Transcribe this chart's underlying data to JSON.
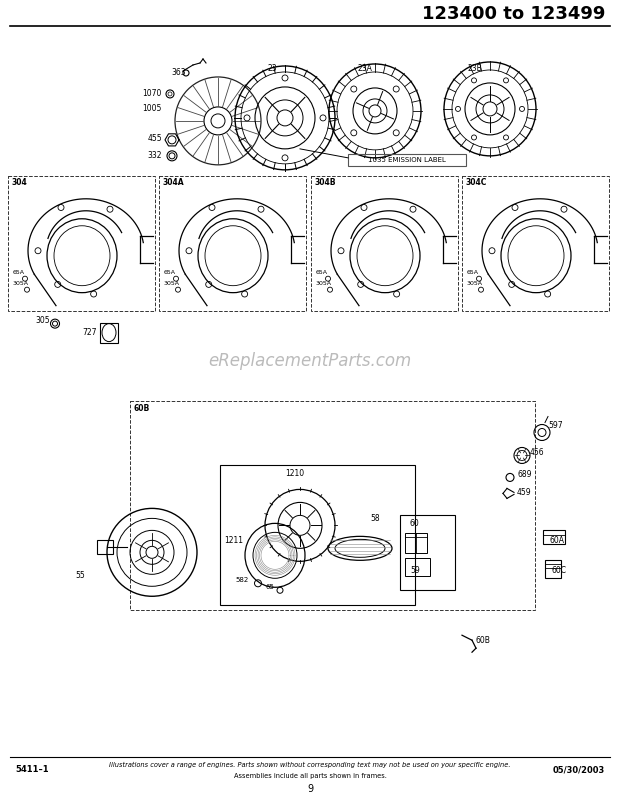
{
  "title": "123400 to 123499",
  "bg_color": "#ffffff",
  "footer_left": "5411–1",
  "footer_center_top": "Illustrations cover a range of engines. Parts shown without corresponding text may not be used on your specific engine.",
  "footer_center_bot": "Assemblies include all parts shown in frames.",
  "footer_right": "05/30/2003",
  "page_number": "9",
  "emission_label": "1035 EMISSION LABEL",
  "watermark": "eReplacementParts.com"
}
